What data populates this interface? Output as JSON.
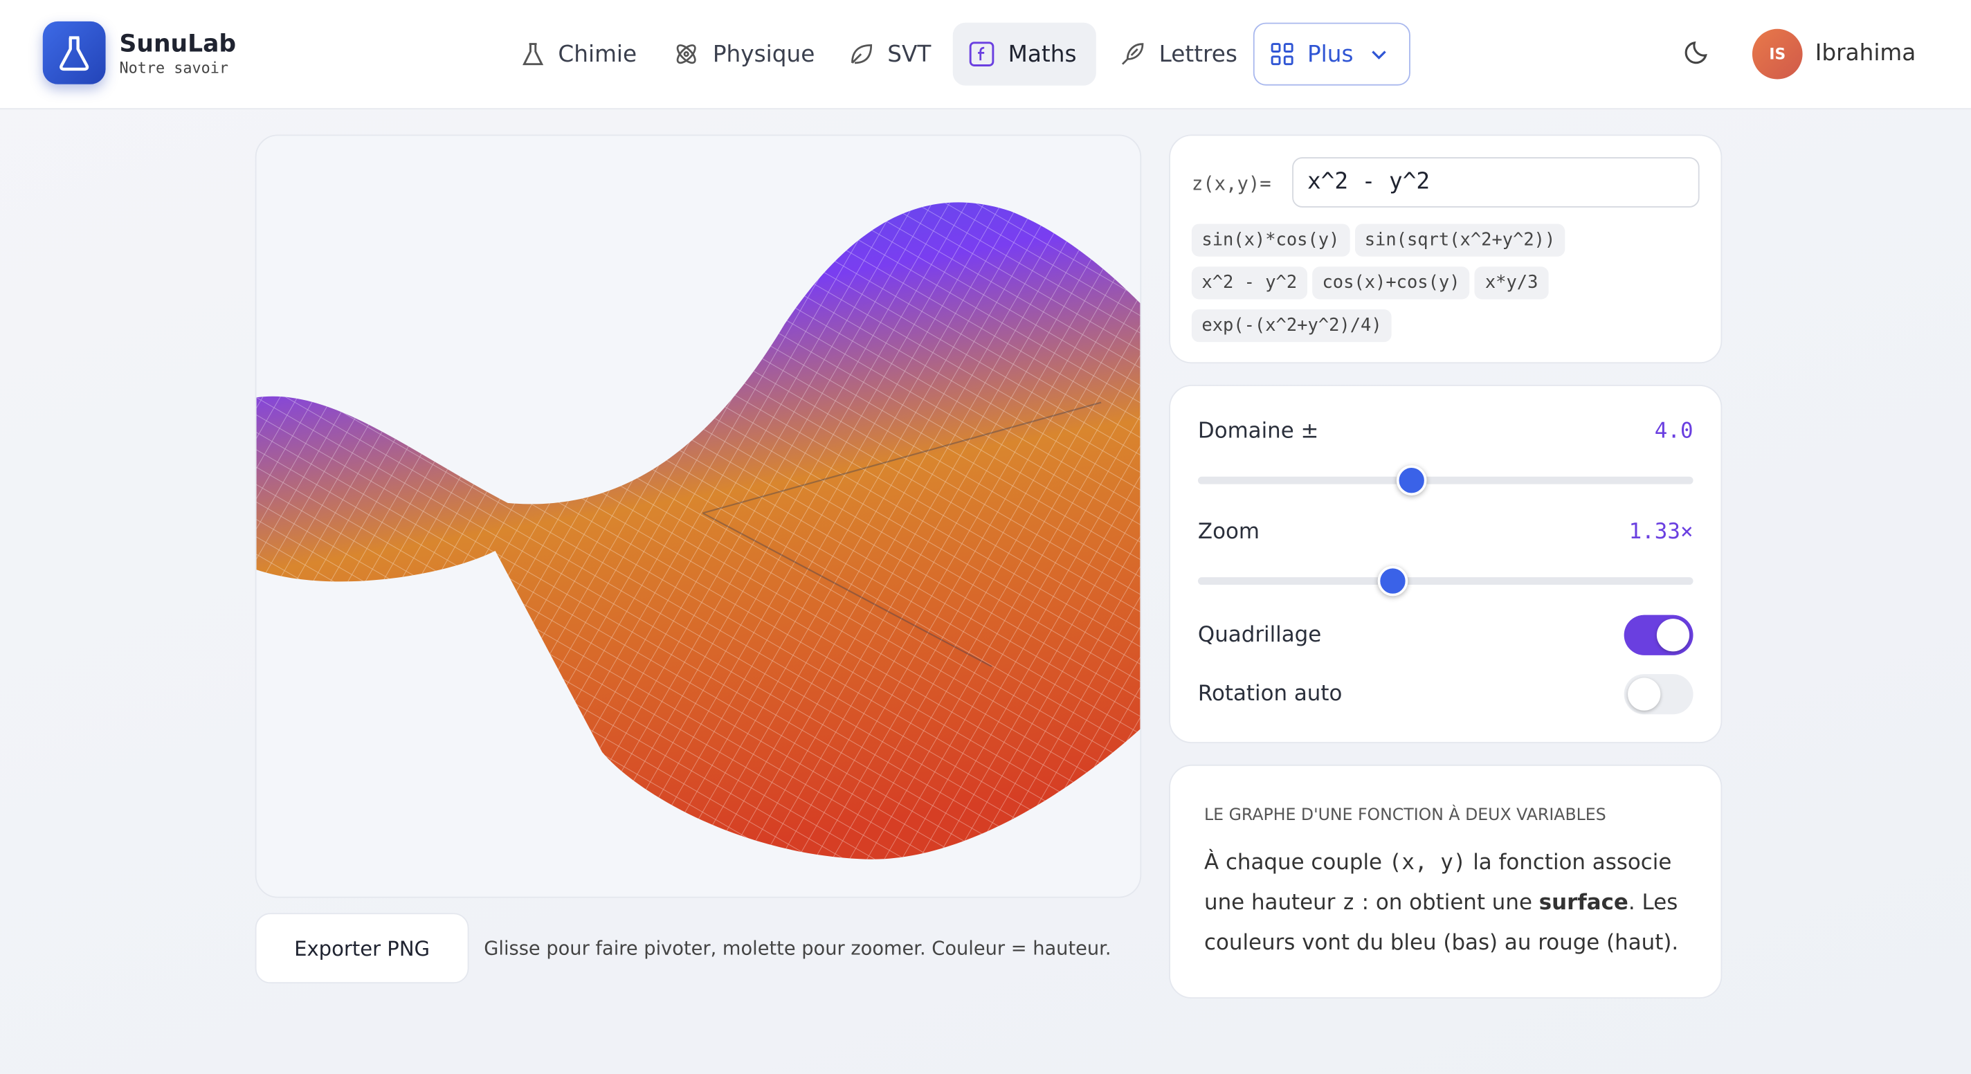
{
  "header": {
    "brand": "SunuLab",
    "tagline": "Notre savoir",
    "nav": [
      "Chimie",
      "Physique",
      "SVT",
      "Maths",
      "Lettres",
      "Plus"
    ],
    "avatar": "IS",
    "user": "Ibrahima"
  },
  "editor": {
    "label": "z(x,y)=",
    "input": "x^2 - y^2",
    "presets": [
      "sin(x)*cos(y)",
      "sin(sqrt(x^2+y^2))",
      "x^2 - y^2",
      "cos(x)+cos(y)",
      "x*y/3",
      "exp(-(x^2+y^2)/4)"
    ]
  },
  "controls": {
    "domain_label": "Domaine ±",
    "domain_value": "4.0",
    "zoom_label": "Zoom",
    "zoom_value": "1.33×",
    "grid_label": "Quadrillage",
    "rotation_label": "Rotation auto"
  },
  "info": {
    "title": "LE GRAPHE D'UNE FONCTION À DEUX VARIABLES",
    "text_1": "À chaque couple ",
    "code_1": "(x, y)",
    "text_2": " la fonction associe une hauteur ",
    "code_2": "z",
    "text_3": " : on obtient une ",
    "strong": "surface",
    "text_4": ". Les couleurs vont du bleu (bas) au rouge (haut)."
  },
  "footer": {
    "export": "Exporter PNG",
    "hint": "Glisse pour faire pivoter, molette pour zoomer. Couleur = hauteur."
  }
}
